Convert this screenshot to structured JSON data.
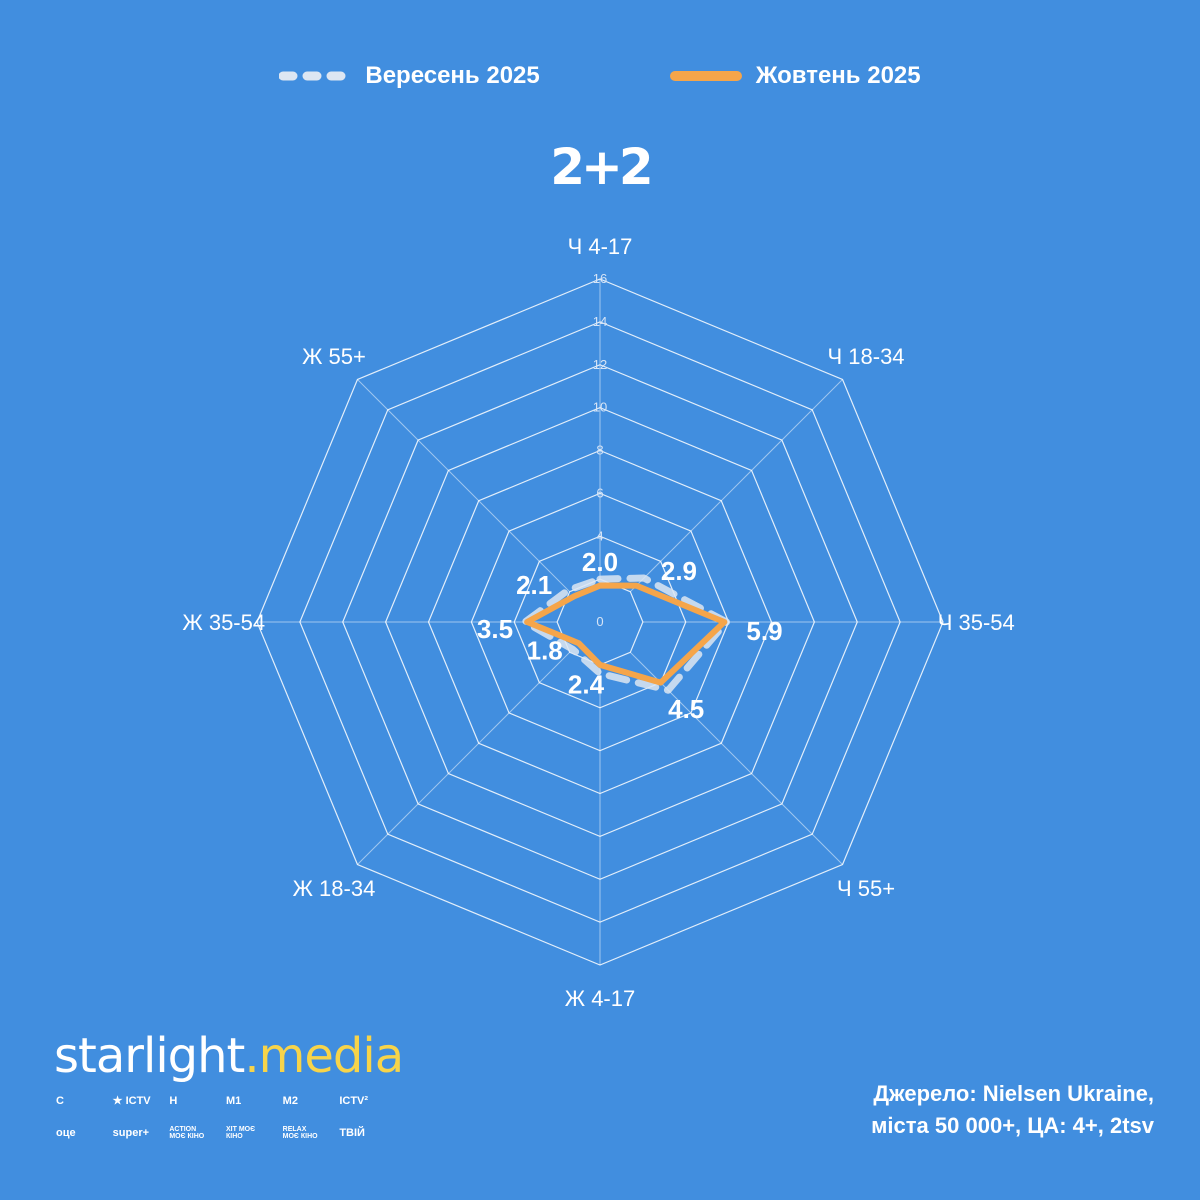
{
  "legend": [
    {
      "label": "Вересень 2025",
      "color": "#dde6f2",
      "style": "dashed"
    },
    {
      "label": "Жовтень 2025",
      "color": "#f5a54a",
      "style": "solid"
    }
  ],
  "channel_logo": "2+2",
  "chart_data": {
    "type": "radar",
    "axes": [
      "Ч 4-17",
      "Ч 18-34",
      "Ч 35-54",
      "Ч 55+",
      "Ж 4-17",
      "Ж 18-34",
      "Ж 35-54",
      "Ж 55+"
    ],
    "rlim": [
      0,
      16
    ],
    "ticks": [
      0,
      4,
      6,
      8,
      10,
      12,
      14,
      16
    ],
    "grid": true,
    "series": [
      {
        "name": "Вересень 2025",
        "values": [
          2.0,
          2.9,
          5.9,
          4.5,
          2.4,
          1.8,
          3.5,
          2.1
        ],
        "color": "#dde6f2",
        "dashed": true
      },
      {
        "name": "Жовтень 2025",
        "values": [
          1.7,
          2.4,
          5.8,
          4.0,
          2.0,
          1.4,
          3.4,
          1.7
        ],
        "color": "#f5a54a",
        "dashed": false
      }
    ],
    "data_labels": [
      "2.0",
      "2.9",
      "5.9",
      "4.5",
      "2.4",
      "1.8",
      "3.5",
      "2.1"
    ]
  },
  "brand": {
    "name": "starlight",
    "dot": ".",
    "suffix": "media"
  },
  "channels": [
    "С",
    "★ ICTV",
    "Н",
    "М1",
    "М2",
    "ICTV²",
    "оце",
    "super+",
    "ACTION МОЄ КІНО",
    "ХІТ МОЄ КІНО",
    "RELAX МОЄ КІНО",
    "ТВІЙ"
  ],
  "source": {
    "line1": "Джерело: Nielsen Ukraine,",
    "line2": "міста 50 000+, ЦА: 4+, 2tsv"
  }
}
